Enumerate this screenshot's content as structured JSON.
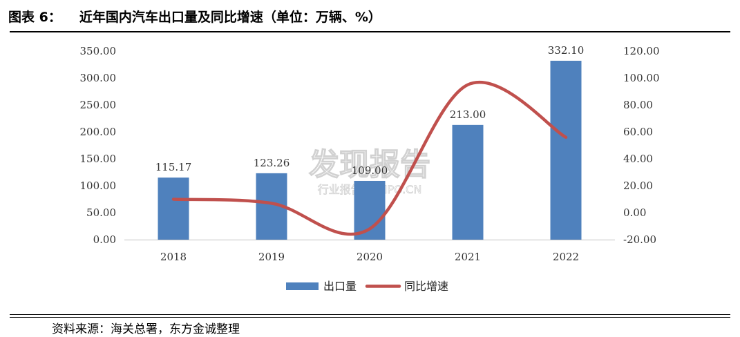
{
  "figure": {
    "number": "图表 6：",
    "title": "近年国内汽车出口量及同比增速（单位：万辆、%）",
    "source": "资料来源：海关总署，东方金诚整理"
  },
  "watermark": {
    "main": "发现报告",
    "sub": "行业报告 IPOIPO.CN"
  },
  "colors": {
    "bar": "#4f81bd",
    "line": "#c0504d",
    "axis": "#bfbfbf"
  },
  "chart_data": {
    "type": "bar",
    "categories": [
      "2018",
      "2019",
      "2020",
      "2021",
      "2022"
    ],
    "series": [
      {
        "name": "出口量",
        "type": "bar",
        "axis": "left",
        "values": [
          115.17,
          123.26,
          109.0,
          213.0,
          332.1
        ],
        "labels": [
          "115.17",
          "123.26",
          "109.00",
          "213.00",
          "332.10"
        ]
      },
      {
        "name": "同比增速",
        "type": "line",
        "axis": "right",
        "smooth": true,
        "values": [
          10.0,
          7.0,
          -12.0,
          95.0,
          56.0
        ]
      }
    ],
    "y_left": {
      "range": [
        0,
        350
      ],
      "ticks": [
        "0.00",
        "50.00",
        "100.00",
        "150.00",
        "200.00",
        "250.00",
        "300.00",
        "350.00"
      ]
    },
    "y_right": {
      "range": [
        -20,
        120
      ],
      "ticks": [
        "-20.00",
        "0.00",
        "20.00",
        "40.00",
        "60.00",
        "80.00",
        "100.00",
        "120.00"
      ]
    },
    "grid": false,
    "legend": "bottom"
  }
}
